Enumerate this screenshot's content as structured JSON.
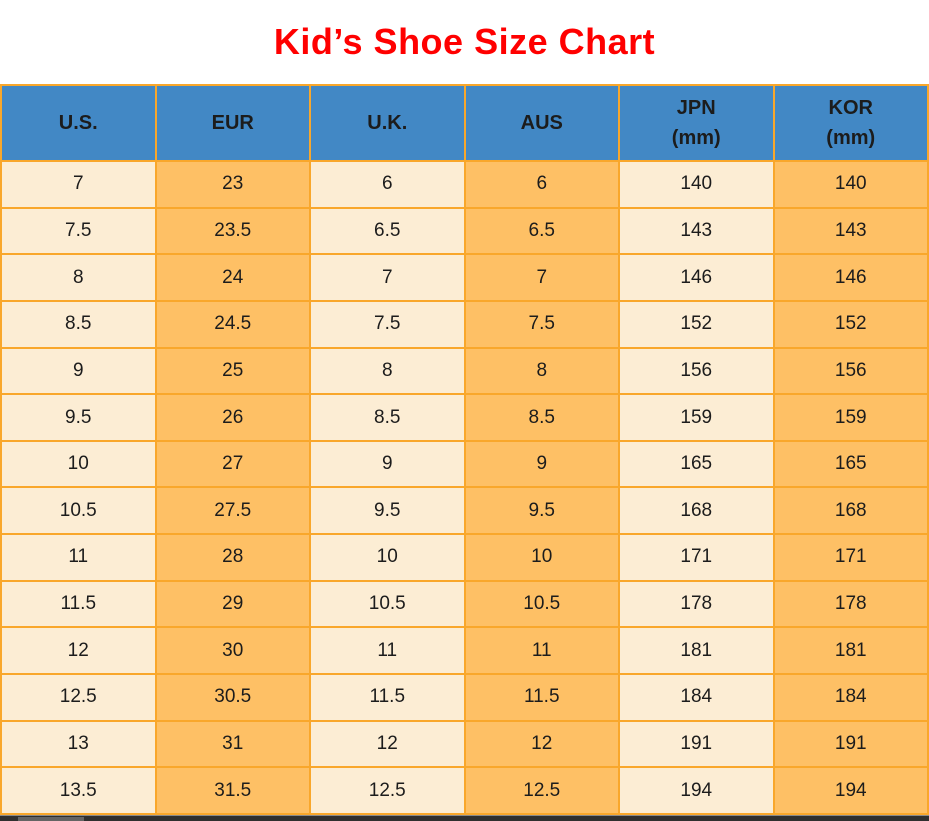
{
  "title": "Kid’s Shoe Size Chart",
  "colors": {
    "title_red": "#ff0000",
    "header_blue": "#4288c5",
    "border_orange": "#f9a72b",
    "cell_cream": "#fcedd4",
    "cell_orange": "#fec065",
    "text_dark": "#1c1c1c",
    "scrollbar_track": "#2f2f2f",
    "scrollbar_thumb": "#646464"
  },
  "table": {
    "headers": [
      [
        "U.S."
      ],
      [
        "EUR"
      ],
      [
        "U.K."
      ],
      [
        "AUS"
      ],
      [
        "JPN",
        "(mm)"
      ],
      [
        "KOR",
        "(mm)"
      ]
    ],
    "rows": [
      [
        "7",
        "23",
        "6",
        "6",
        "140",
        "140"
      ],
      [
        "7.5",
        "23.5",
        "6.5",
        "6.5",
        "143",
        "143"
      ],
      [
        "8",
        "24",
        "7",
        "7",
        "146",
        "146"
      ],
      [
        "8.5",
        "24.5",
        "7.5",
        "7.5",
        "152",
        "152"
      ],
      [
        "9",
        "25",
        "8",
        "8",
        "156",
        "156"
      ],
      [
        "9.5",
        "26",
        "8.5",
        "8.5",
        "159",
        "159"
      ],
      [
        "10",
        "27",
        "9",
        "9",
        "165",
        "165"
      ],
      [
        "10.5",
        "27.5",
        "9.5",
        "9.5",
        "168",
        "168"
      ],
      [
        "11",
        "28",
        "10",
        "10",
        "171",
        "171"
      ],
      [
        "11.5",
        "29",
        "10.5",
        "10.5",
        "178",
        "178"
      ],
      [
        "12",
        "30",
        "11",
        "11",
        "181",
        "181"
      ],
      [
        "12.5",
        "30.5",
        "11.5",
        "11.5",
        "184",
        "184"
      ],
      [
        "13",
        "31",
        "12",
        "12",
        "191",
        "191"
      ],
      [
        "13.5",
        "31.5",
        "12.5",
        "12.5",
        "194",
        "194"
      ]
    ]
  },
  "chart_data": {
    "type": "table",
    "title": "Kid’s Shoe Size Chart",
    "columns": [
      "U.S.",
      "EUR",
      "U.K.",
      "AUS",
      "JPN (mm)",
      "KOR (mm)"
    ],
    "rows": [
      [
        "7",
        "23",
        "6",
        "6",
        "140",
        "140"
      ],
      [
        "7.5",
        "23.5",
        "6.5",
        "6.5",
        "143",
        "143"
      ],
      [
        "8",
        "24",
        "7",
        "7",
        "146",
        "146"
      ],
      [
        "8.5",
        "24.5",
        "7.5",
        "7.5",
        "152",
        "152"
      ],
      [
        "9",
        "25",
        "8",
        "8",
        "156",
        "156"
      ],
      [
        "9.5",
        "26",
        "8.5",
        "8.5",
        "159",
        "159"
      ],
      [
        "10",
        "27",
        "9",
        "9",
        "165",
        "165"
      ],
      [
        "10.5",
        "27.5",
        "9.5",
        "9.5",
        "168",
        "168"
      ],
      [
        "11",
        "28",
        "10",
        "10",
        "171",
        "171"
      ],
      [
        "11.5",
        "29",
        "10.5",
        "10.5",
        "178",
        "178"
      ],
      [
        "12",
        "30",
        "11",
        "11",
        "181",
        "181"
      ],
      [
        "12.5",
        "30.5",
        "11.5",
        "11.5",
        "184",
        "184"
      ],
      [
        "13",
        "31",
        "12",
        "12",
        "191",
        "191"
      ],
      [
        "13.5",
        "31.5",
        "12.5",
        "12.5",
        "194",
        "194"
      ]
    ]
  }
}
